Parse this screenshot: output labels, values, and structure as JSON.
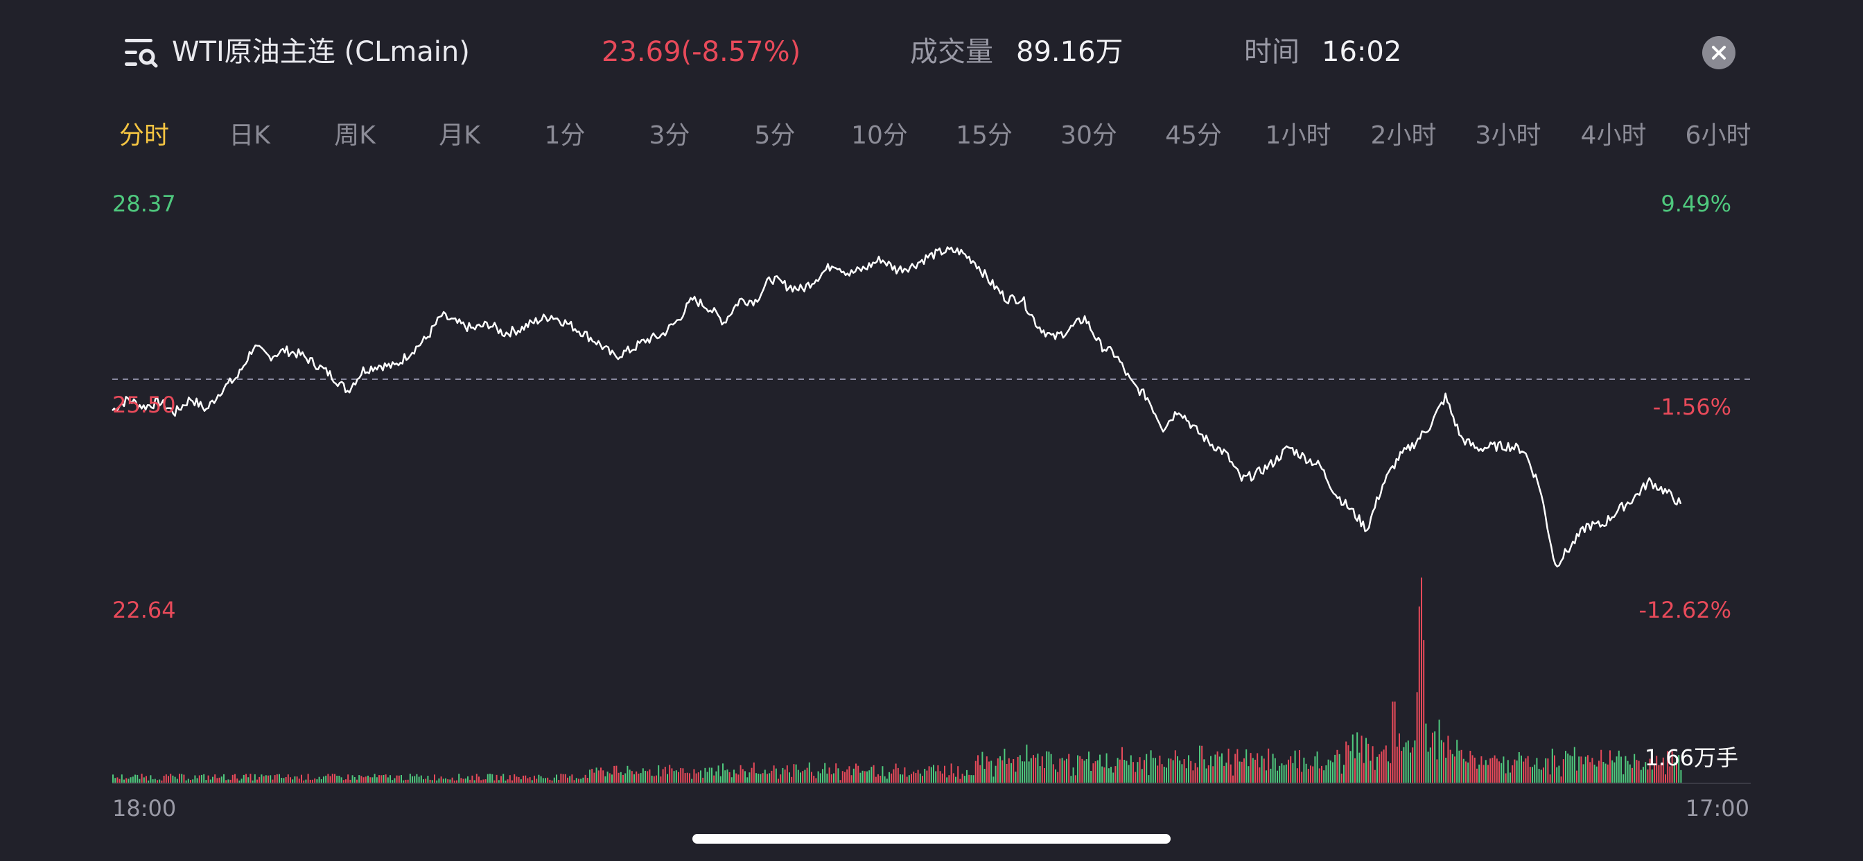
{
  "header": {
    "instrument": "WTI原油主连 (CLmain)",
    "price_change": "23.69(-8.57%)",
    "volume_label": "成交量",
    "volume_value": "89.16万",
    "time_label": "时间",
    "time_value": "16:02"
  },
  "tabs": [
    {
      "label": "分时",
      "active": true
    },
    {
      "label": "日K",
      "active": false
    },
    {
      "label": "周K",
      "active": false
    },
    {
      "label": "月K",
      "active": false
    },
    {
      "label": "1分",
      "active": false
    },
    {
      "label": "3分",
      "active": false
    },
    {
      "label": "5分",
      "active": false
    },
    {
      "label": "10分",
      "active": false
    },
    {
      "label": "15分",
      "active": false
    },
    {
      "label": "30分",
      "active": false
    },
    {
      "label": "45分",
      "active": false
    },
    {
      "label": "1小时",
      "active": false
    },
    {
      "label": "2小时",
      "active": false
    },
    {
      "label": "3小时",
      "active": false
    },
    {
      "label": "4小时",
      "active": false
    },
    {
      "label": "6小时",
      "active": false
    }
  ],
  "colors": {
    "background": "#21212a",
    "line": "#ffffff",
    "up": "#4fc97e",
    "down": "#e84a5a",
    "active_tab": "#f5c542",
    "baseline": "#8a8aa0"
  },
  "chart_data": {
    "type": "line",
    "title": "",
    "price_axis": {
      "top": "28.37",
      "mid": "25.50",
      "bottom": "22.64",
      "ylim": [
        22.64,
        28.37
      ],
      "reference": 25.5
    },
    "pct_axis": {
      "top": "9.49%",
      "mid": "-1.56%",
      "bottom": "-12.62%"
    },
    "x_axis": {
      "start": "18:00",
      "end": "17:00"
    },
    "volume_max_label": "1.66万手",
    "grid": false,
    "series": [
      {
        "values": [
          25.46,
          25.62,
          25.51,
          25.58,
          25.43,
          25.63,
          25.47,
          25.76,
          25.94,
          26.36,
          26.22,
          26.31,
          26.25,
          26.11,
          25.95,
          25.74,
          26.03,
          26.1,
          26.08,
          26.28,
          26.47,
          26.8,
          26.69,
          26.61,
          26.68,
          26.55,
          26.61,
          26.72,
          26.8,
          26.69,
          26.56,
          26.41,
          26.22,
          26.31,
          26.45,
          26.52,
          26.72,
          27.03,
          26.92,
          26.71,
          27.02,
          27.01,
          27.33,
          27.22,
          27.17,
          27.35,
          27.54,
          27.39,
          27.47,
          27.6,
          27.45,
          27.5,
          27.63,
          27.71,
          27.71,
          27.56,
          27.27,
          27.04,
          27.04,
          26.66,
          26.48,
          26.6,
          26.77,
          26.38,
          26.24,
          25.84,
          25.64,
          25.21,
          25.48,
          25.2,
          25.0,
          24.85,
          24.48,
          24.57,
          24.72,
          24.94,
          24.8,
          24.68,
          24.28,
          24.05,
          23.78,
          24.41,
          24.79,
          24.99,
          25.24,
          25.65,
          25.07,
          24.92,
          24.95,
          24.96,
          24.9,
          24.39,
          23.27,
          23.54,
          23.83,
          23.84,
          24.05,
          24.22,
          24.46,
          24.32,
          24.14
        ]
      }
    ],
    "volume": {
      "peak_ratio": 1.0,
      "spike_position_ratio": 0.834
    }
  }
}
